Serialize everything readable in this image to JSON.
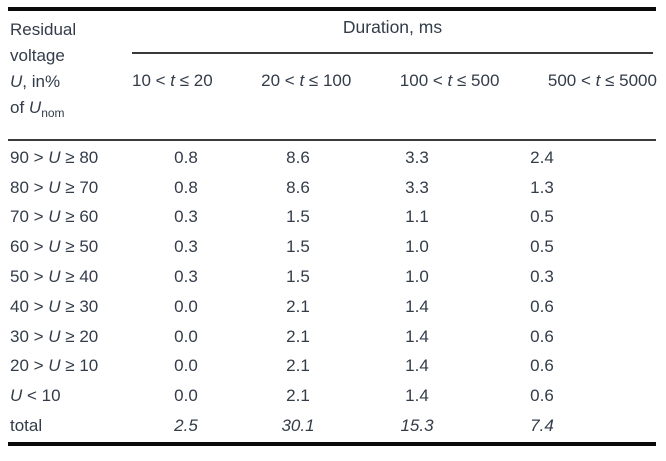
{
  "table": {
    "corner": {
      "line1": "Residual",
      "line2": "voltage",
      "line3_var": "U",
      "line3_rest": ", in%",
      "line4_pre": "of ",
      "line4_var": "U",
      "line4_sub": "nom"
    },
    "duration_title": "Duration, ms",
    "col_headers": [
      {
        "pre": "10 < ",
        "var": "t",
        "post": " ≤ 20"
      },
      {
        "pre": "20 < ",
        "var": "t",
        "post": " ≤ 100"
      },
      {
        "pre": "100 < ",
        "var": "t",
        "post": " ≤ 500"
      },
      {
        "pre": "500 < ",
        "var": "t",
        "post": " ≤ 5000"
      }
    ],
    "rows": [
      {
        "label_pre": "90 > ",
        "label_var": "U",
        "label_post": " ≥ 80",
        "values": [
          "0.8",
          "8.6",
          "3.3",
          "2.4"
        ]
      },
      {
        "label_pre": "80 > ",
        "label_var": "U",
        "label_post": " ≥ 70",
        "values": [
          "0.8",
          "8.6",
          "3.3",
          "1.3"
        ]
      },
      {
        "label_pre": "70 > ",
        "label_var": "U",
        "label_post": " ≥ 60",
        "values": [
          "0.3",
          "1.5",
          "1.1",
          "0.5"
        ]
      },
      {
        "label_pre": "60 > ",
        "label_var": "U",
        "label_post": " ≥ 50",
        "values": [
          "0.3",
          "1.5",
          "1.0",
          "0.5"
        ]
      },
      {
        "label_pre": "50 > ",
        "label_var": "U",
        "label_post": " ≥ 40",
        "values": [
          "0.3",
          "1.5",
          "1.0",
          "0.3"
        ]
      },
      {
        "label_pre": "40 > ",
        "label_var": "U",
        "label_post": " ≥ 30",
        "values": [
          "0.0",
          "2.1",
          "1.4",
          "0.6"
        ]
      },
      {
        "label_pre": "30 > ",
        "label_var": "U",
        "label_post": " ≥ 20",
        "values": [
          "0.0",
          "2.1",
          "1.4",
          "0.6"
        ]
      },
      {
        "label_pre": "20 > ",
        "label_var": "U",
        "label_post": " ≥ 10",
        "values": [
          "0.0",
          "2.1",
          "1.4",
          "0.6"
        ]
      },
      {
        "label_pre": "",
        "label_var": "U",
        "label_post": " < 10",
        "values": [
          "0.0",
          "2.1",
          "1.4",
          "0.6"
        ]
      }
    ],
    "total_row": {
      "label": "total",
      "values": [
        "2.5",
        "30.1",
        "15.3",
        "7.4"
      ]
    },
    "colors": {
      "text": "#333c49",
      "thick_rule": "#0a0a0a",
      "thin_rule": "#3a3a3a",
      "background": "#ffffff"
    }
  }
}
